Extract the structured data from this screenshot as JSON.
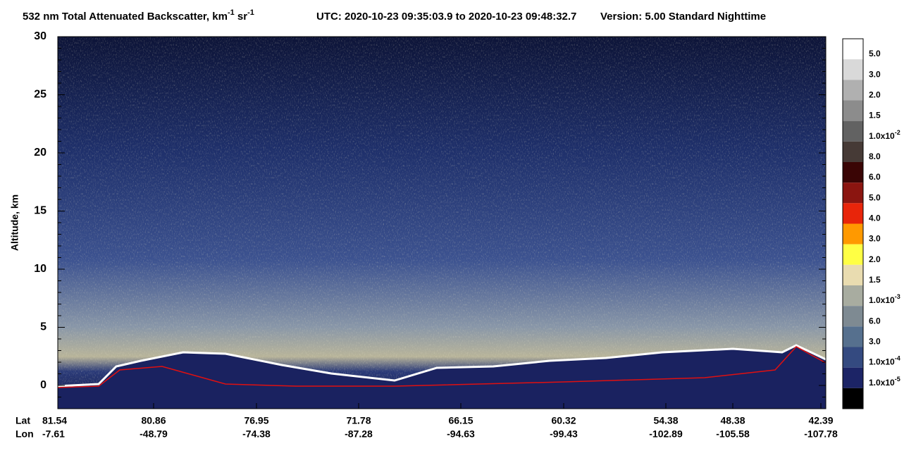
{
  "chart_data": {
    "type": "heatmap",
    "title": {
      "main": "532 nm Total Attenuated Backscatter, km",
      "sup1": "-1",
      "mid": " sr",
      "sup2": "-1"
    },
    "utc": "UTC:  2020-10-23 09:35:03.9  to  2020-10-23 09:48:32.7",
    "version": "Version: 5.00  Standard  Nighttime",
    "ylabel": "Altitude, km",
    "ylim": [
      -2,
      30
    ],
    "yticks": [
      0,
      5,
      10,
      15,
      20,
      25,
      30
    ],
    "x_row_labels": [
      "Lat",
      "Lon"
    ],
    "lat": [
      "81.54",
      "80.86",
      "76.95",
      "71.78",
      "66.15",
      "60.32",
      "54.38",
      "48.38",
      "42.39"
    ],
    "lon": [
      "-7.61",
      "-48.79",
      "-74.38",
      "-87.28",
      "-94.63",
      "-99.43",
      "-102.89",
      "-105.58",
      "-107.78"
    ],
    "colorbar": {
      "colors": [
        "#ffffff",
        "#d9d9d9",
        "#b0b0b0",
        "#8c8c8c",
        "#626262",
        "#463a36",
        "#3a0505",
        "#8b1510",
        "#e8250a",
        "#ff9900",
        "#ffff44",
        "#e9dcb0",
        "#a8aca0",
        "#7e8a92",
        "#56708e",
        "#344a80",
        "#1c2466",
        "#000000"
      ],
      "labels": [
        {
          "text": "5.0"
        },
        {
          "text": "3.0"
        },
        {
          "text": "2.0"
        },
        {
          "text": "1.5"
        },
        {
          "text": "1.0x10",
          "sup": "-2"
        },
        {
          "text": "8.0"
        },
        {
          "text": "6.0"
        },
        {
          "text": "5.0"
        },
        {
          "text": "4.0"
        },
        {
          "text": "3.0"
        },
        {
          "text": "2.0"
        },
        {
          "text": "1.5"
        },
        {
          "text": "1.0x10",
          "sup": "-3"
        },
        {
          "text": "6.0"
        },
        {
          "text": "3.0"
        },
        {
          "text": "1.0x10",
          "sup": "-4"
        },
        {
          "text": "1.0x10",
          "sup": "-5"
        }
      ]
    }
  }
}
